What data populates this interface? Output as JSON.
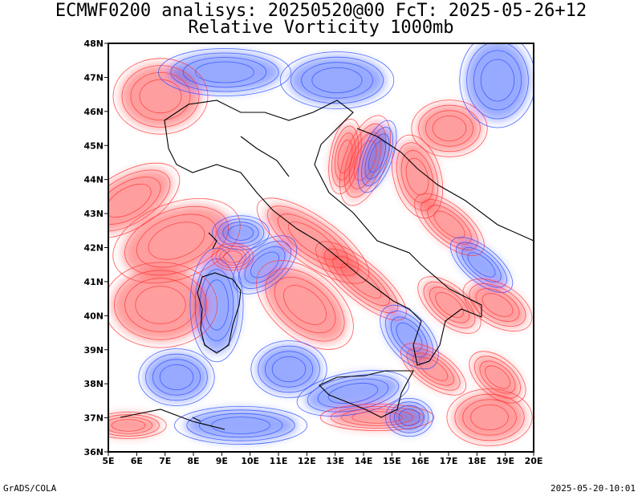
{
  "title": {
    "line1": "ECMWF0200 analisys: 20250520@00 FcT: 2025-05-26+12",
    "line2": "Relative Vorticity 1000mb"
  },
  "map": {
    "lon_range": [
      5,
      20
    ],
    "lat_range": [
      36,
      48
    ],
    "lon_ticks": [
      "5E",
      "6E",
      "7E",
      "8E",
      "9E",
      "10E",
      "11E",
      "12E",
      "13E",
      "14E",
      "15E",
      "16E",
      "17E",
      "18E",
      "19E",
      "20E"
    ],
    "lat_ticks": [
      "36N",
      "37N",
      "38N",
      "39N",
      "40N",
      "41N",
      "42N",
      "43N",
      "44N",
      "45N",
      "46N",
      "47N",
      "48N"
    ],
    "colors": {
      "positive": "#ff3b3b",
      "negative": "#2f52ff",
      "coast": "#000000",
      "border": "#000000"
    }
  },
  "footer": {
    "left": "GrADS/COLA",
    "right": "2025-05-20-10:01"
  }
}
